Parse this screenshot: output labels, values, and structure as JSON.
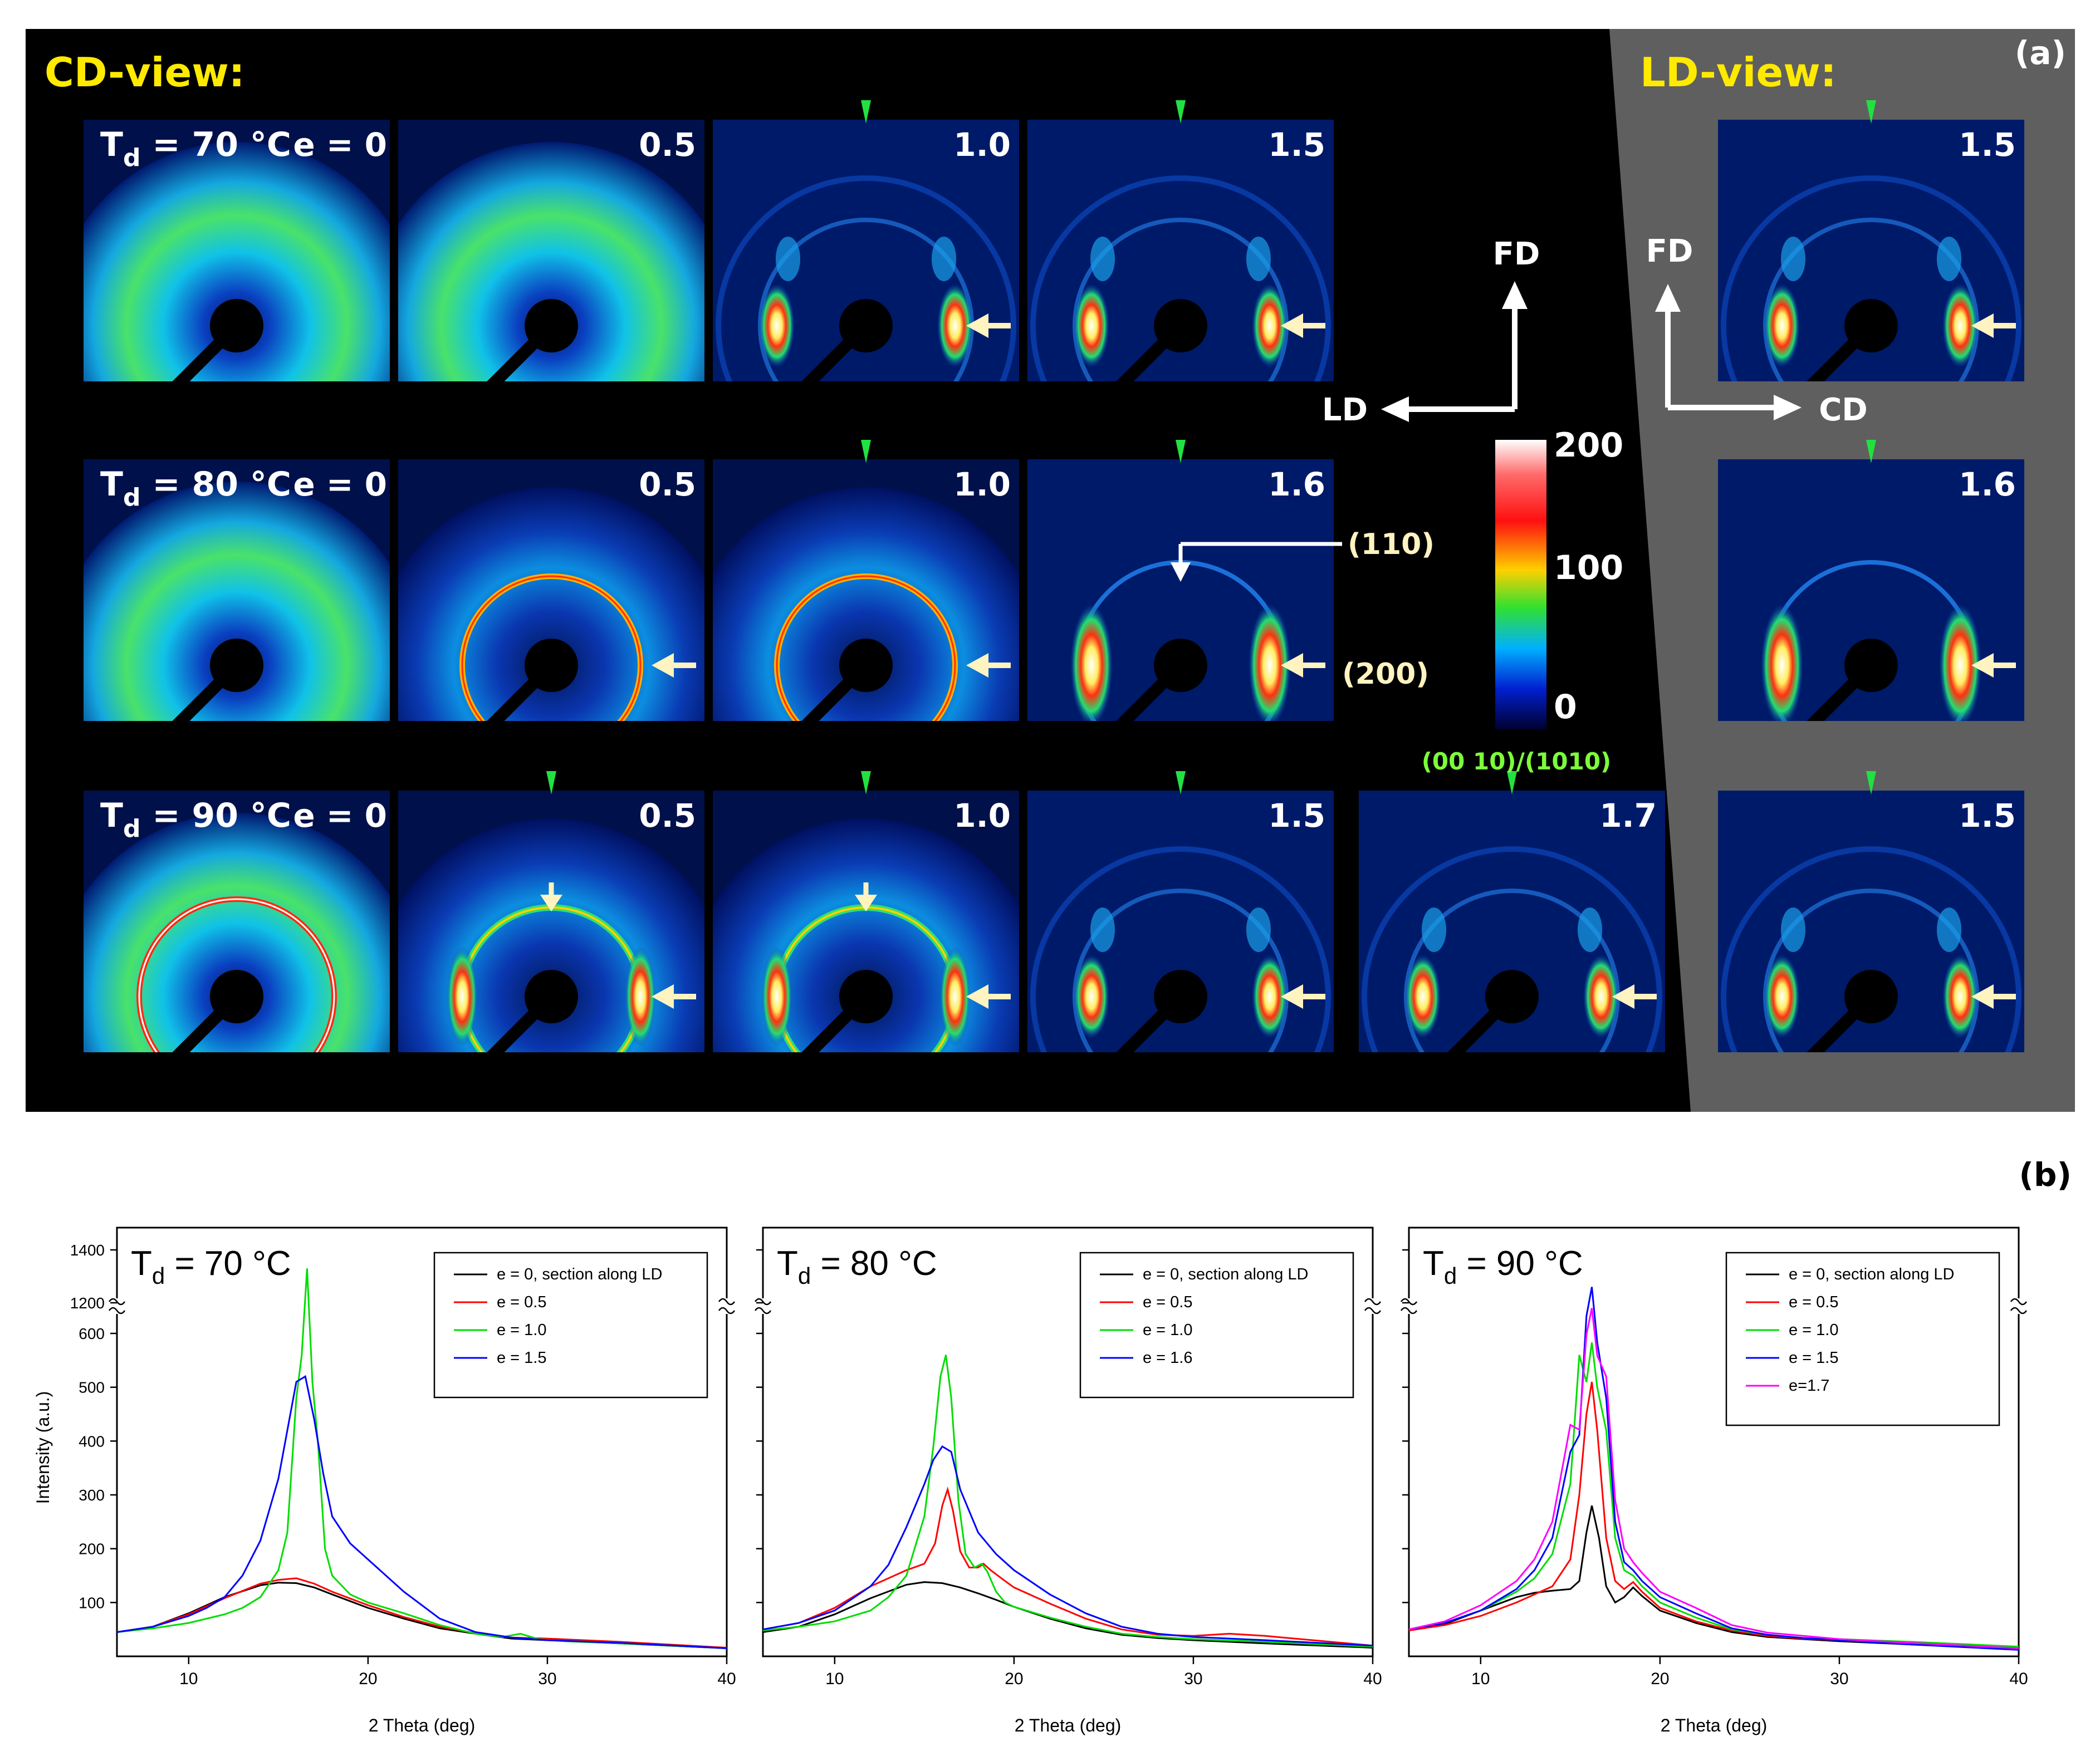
{
  "panel_a": {
    "panel_label": "(a)",
    "cd_view_title": "CD-view:",
    "ld_view_title": "LD-view:",
    "colors": {
      "title": "#ffea00",
      "green_label": "#7cff3a",
      "green_arrow": "#22e040",
      "cream_arrow": "#fff3c0",
      "gray_bg": "#5f5f5f"
    },
    "rows": [
      {
        "td_prefix": "T",
        "td_sub": "d",
        "td_value": " = 70 °C",
        "first_label": "e = 0",
        "cd_labels": [
          "0.5",
          "1.0",
          "1.5"
        ],
        "ld_label": "1.5"
      },
      {
        "td_prefix": "T",
        "td_sub": "d",
        "td_value": " = 80 °C",
        "first_label": "e = 0",
        "cd_labels": [
          "0.5",
          "1.0",
          "1.6"
        ],
        "ld_label": "1.6"
      },
      {
        "td_prefix": "T",
        "td_sub": "d",
        "td_value": " = 90 °C",
        "first_label": "e = 0",
        "cd_labels": [
          "0.5",
          "1.0",
          "1.5",
          "1.7"
        ],
        "ld_label": "1.5"
      }
    ],
    "axes_cd": {
      "vertical": "FD",
      "horizontal": "LD"
    },
    "axes_ld": {
      "vertical": "FD",
      "horizontal": "CD"
    },
    "reflections": {
      "r110": "(110)",
      "r200": "(200)",
      "r0010": "(00 10)/(1010)"
    },
    "colorbar": {
      "ticks": [
        "200",
        "100",
        "0"
      ],
      "min": 0,
      "max": 200
    }
  },
  "chart_data": [
    {
      "type": "line",
      "title_prefix": "T",
      "title_sub": "d",
      "title_value": " = 70 °C",
      "xlabel": "2 Theta (deg)",
      "ylabel": "Intensity (a.u.)",
      "xlim": [
        6,
        40
      ],
      "xticks": [
        "10",
        "20",
        "30",
        "40"
      ],
      "yticks": [
        "100",
        "200",
        "300",
        "400",
        "500",
        "600",
        "1200",
        "1400"
      ],
      "axis_break": [
        600,
        1200
      ],
      "series": [
        {
          "name": "e = 0, section along LD",
          "color": "#000000",
          "x": [
            6,
            8,
            10,
            12,
            14,
            15,
            16,
            17,
            18,
            20,
            22,
            24,
            26,
            28,
            30,
            34,
            40
          ],
          "y": [
            45,
            55,
            80,
            110,
            132,
            137,
            136,
            128,
            115,
            90,
            70,
            52,
            42,
            33,
            30,
            24,
            15
          ]
        },
        {
          "name": "e = 0.5",
          "color": "#ff0000",
          "x": [
            6,
            8,
            10,
            12,
            14,
            15,
            16,
            17,
            18,
            20,
            22,
            24,
            26,
            28,
            30,
            34,
            40
          ],
          "y": [
            45,
            55,
            78,
            108,
            135,
            142,
            145,
            135,
            120,
            95,
            73,
            55,
            43,
            35,
            33,
            27,
            16
          ]
        },
        {
          "name": "e = 1.0",
          "color": "#00dd00",
          "x": [
            6,
            8,
            10,
            12,
            13,
            14,
            15,
            15.5,
            16,
            16.3,
            16.6,
            16.9,
            17.2,
            17.6,
            18,
            19,
            20,
            22,
            24,
            26,
            27.5,
            28.5,
            29.5,
            31,
            34,
            40
          ],
          "y": [
            45,
            52,
            62,
            78,
            90,
            110,
            160,
            230,
            480,
            1000,
            1330,
            900,
            400,
            200,
            150,
            115,
            100,
            80,
            58,
            42,
            36,
            42,
            32,
            28,
            24,
            15
          ]
        },
        {
          "name": "e = 1.5",
          "color": "#0000ff",
          "x": [
            6,
            8,
            10,
            11,
            12,
            13,
            14,
            15,
            15.5,
            16,
            16.5,
            17,
            17.5,
            18,
            19,
            20,
            22,
            24,
            26,
            28,
            30,
            34,
            40
          ],
          "y": [
            45,
            55,
            75,
            90,
            110,
            150,
            215,
            330,
            420,
            510,
            520,
            440,
            340,
            260,
            210,
            180,
            120,
            70,
            45,
            35,
            30,
            25,
            15
          ]
        }
      ]
    },
    {
      "type": "line",
      "title_prefix": "T",
      "title_sub": "d",
      "title_value": " = 80 °C",
      "xlabel": "2 Theta (deg)",
      "ylabel": "",
      "xlim": [
        6,
        40
      ],
      "xticks": [
        "10",
        "20",
        "30",
        "40"
      ],
      "series": [
        {
          "name": "e = 0, section along LD",
          "color": "#000000",
          "x": [
            6,
            8,
            10,
            12,
            14,
            15,
            16,
            17,
            18,
            19,
            20,
            22,
            24,
            26,
            28,
            30,
            34,
            40
          ],
          "y": [
            45,
            55,
            78,
            108,
            133,
            138,
            136,
            128,
            117,
            105,
            92,
            70,
            52,
            40,
            34,
            30,
            24,
            16
          ]
        },
        {
          "name": "e = 0.5",
          "color": "#ff0000",
          "x": [
            6,
            8,
            10,
            12,
            14,
            15,
            15.6,
            16,
            16.3,
            16.6,
            17,
            17.5,
            18,
            18.3,
            18.7,
            19.5,
            20,
            22,
            24,
            26,
            28,
            30,
            32,
            34,
            40
          ],
          "y": [
            50,
            62,
            90,
            130,
            160,
            172,
            210,
            280,
            310,
            270,
            195,
            165,
            165,
            172,
            160,
            140,
            128,
            98,
            70,
            50,
            40,
            38,
            42,
            38,
            20
          ]
        },
        {
          "name": "e = 1.0",
          "color": "#00dd00",
          "x": [
            6,
            8,
            10,
            12,
            13,
            14,
            15,
            15.5,
            15.9,
            16.2,
            16.5,
            16.9,
            17.3,
            17.8,
            18.2,
            18.5,
            19,
            19.5,
            20,
            22,
            24,
            26,
            28,
            30,
            34,
            40
          ],
          "y": [
            48,
            55,
            65,
            85,
            110,
            150,
            260,
            390,
            520,
            560,
            480,
            290,
            190,
            165,
            172,
            158,
            120,
            100,
            92,
            72,
            55,
            42,
            36,
            32,
            27,
            18
          ]
        },
        {
          "name": "e = 1.6",
          "color": "#0000ff",
          "x": [
            6,
            8,
            10,
            12,
            13,
            14,
            15,
            15.5,
            16,
            16.5,
            17,
            18,
            19,
            20,
            22,
            24,
            26,
            28,
            30,
            34,
            40
          ],
          "y": [
            50,
            62,
            85,
            130,
            170,
            240,
            320,
            365,
            390,
            380,
            310,
            230,
            190,
            160,
            115,
            80,
            55,
            42,
            36,
            30,
            20
          ]
        }
      ]
    },
    {
      "type": "line",
      "title_prefix": "T",
      "title_sub": "d",
      "title_value": " = 90 °C",
      "xlabel": "2 Theta (deg)",
      "ylabel": "",
      "xlim": [
        6,
        40
      ],
      "xticks": [
        "10",
        "20",
        "30",
        "40"
      ],
      "series": [
        {
          "name": "e = 0, section along LD",
          "color": "#000000",
          "x": [
            6,
            8,
            10,
            12,
            13,
            14,
            15,
            15.5,
            15.9,
            16.2,
            16.6,
            17,
            17.5,
            18,
            18.5,
            19,
            20,
            22,
            24,
            26,
            28,
            30,
            34,
            40
          ],
          "y": [
            50,
            60,
            85,
            110,
            118,
            122,
            125,
            140,
            230,
            280,
            220,
            130,
            100,
            110,
            128,
            112,
            85,
            62,
            45,
            36,
            32,
            28,
            22,
            15
          ]
        },
        {
          "name": "e = 0.5",
          "color": "#ff0000",
          "x": [
            6,
            8,
            10,
            12,
            13,
            14,
            15,
            15.5,
            15.9,
            16.2,
            16.5,
            17,
            17.5,
            18,
            18.5,
            19,
            20,
            22,
            24,
            26,
            28,
            30,
            34,
            40
          ],
          "y": [
            48,
            58,
            75,
            100,
            115,
            130,
            180,
            300,
            450,
            510,
            420,
            220,
            140,
            125,
            138,
            120,
            90,
            65,
            48,
            38,
            33,
            30,
            24,
            15
          ]
        },
        {
          "name": "e = 1.0",
          "color": "#00dd00",
          "x": [
            6,
            8,
            10,
            12,
            13,
            14,
            15,
            15.5,
            15.9,
            16.2,
            16.5,
            17,
            17.5,
            18,
            18.5,
            19,
            20,
            22,
            24,
            26,
            28,
            30,
            34,
            40
          ],
          "y": [
            50,
            62,
            85,
            120,
            145,
            190,
            320,
            560,
            900,
            1050,
            880,
            420,
            220,
            160,
            150,
            130,
            100,
            72,
            50,
            40,
            34,
            32,
            27,
            18
          ]
        },
        {
          "name": "e = 1.5",
          "color": "#0000ff",
          "x": [
            6,
            8,
            10,
            12,
            13,
            14,
            15,
            15.5,
            15.9,
            16.2,
            16.5,
            17,
            17.5,
            18,
            18.5,
            19,
            20,
            22,
            24,
            26,
            28,
            30,
            34,
            40
          ],
          "y": [
            50,
            62,
            85,
            125,
            160,
            220,
            380,
            700,
            1150,
            1260,
            1050,
            480,
            250,
            175,
            160,
            140,
            110,
            80,
            52,
            40,
            34,
            30,
            22,
            12
          ]
        },
        {
          "name": "e=1.7",
          "color": "#ff00ff",
          "x": [
            6,
            8,
            10,
            12,
            13,
            14,
            15,
            15.5,
            15.9,
            16.2,
            16.5,
            17,
            17.5,
            18,
            18.5,
            19,
            20,
            22,
            24,
            26,
            28,
            30,
            34,
            40
          ],
          "y": [
            50,
            65,
            95,
            140,
            180,
            250,
            430,
            720,
            1080,
            1180,
            1000,
            520,
            290,
            200,
            175,
            155,
            120,
            90,
            58,
            44,
            38,
            32,
            25,
            15
          ]
        }
      ],
      "legend_position": "top-right"
    }
  ],
  "panel_b": {
    "panel_label": "(b)"
  }
}
